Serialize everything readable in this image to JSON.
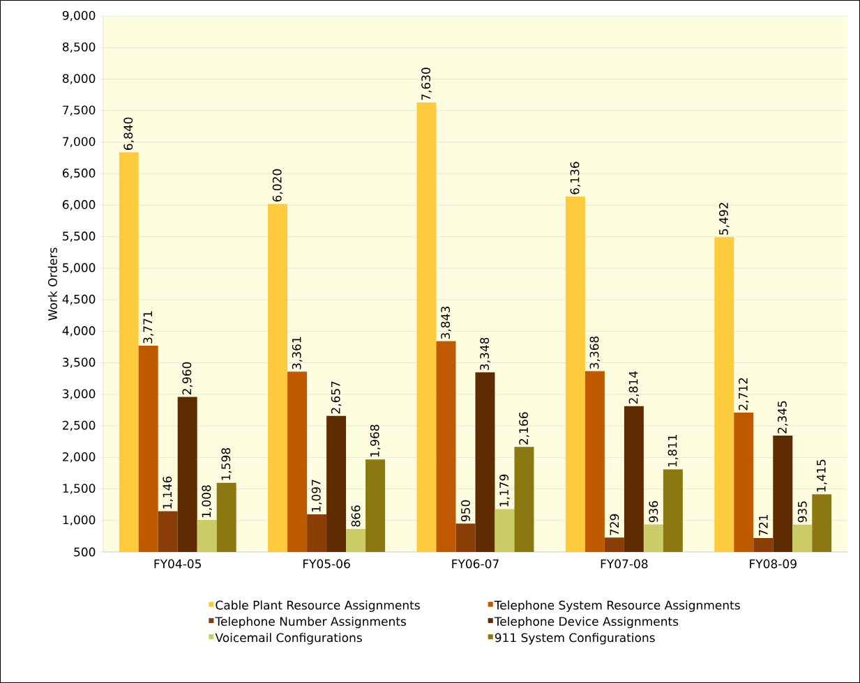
{
  "chart_data": {
    "type": "bar",
    "ylabel": "Work Orders",
    "categories": [
      "FY04-05",
      "FY05-06",
      "FY06-07",
      "FY07-08",
      "FY08-09"
    ],
    "series": [
      {
        "name": "Cable Plant Resource Assignments",
        "color": "#fdcb3c",
        "values": [
          6840,
          6020,
          7630,
          6136,
          5492
        ],
        "value_labels": [
          "6,840",
          "6,020",
          "7,630",
          "6,136",
          "5,492"
        ]
      },
      {
        "name": "Telephone System Resource Assignments",
        "color": "#c05a00",
        "values": [
          3771,
          3361,
          3843,
          3368,
          2712
        ],
        "value_labels": [
          "3,771",
          "3,361",
          "3,843",
          "3,368",
          "2,712"
        ]
      },
      {
        "name": "Telephone Number Assignments",
        "color": "#8a3d05",
        "values": [
          1146,
          1097,
          950,
          729,
          721
        ],
        "value_labels": [
          "1,146",
          "1,097",
          "950",
          "729",
          "721"
        ]
      },
      {
        "name": "Telephone Device Assignments",
        "color": "#5e2c00",
        "values": [
          2960,
          2657,
          3348,
          2814,
          2345
        ],
        "value_labels": [
          "2,960",
          "2,657",
          "3,348",
          "2,814",
          "2,345"
        ]
      },
      {
        "name": "Voicemail Configurations",
        "color": "#cccc66",
        "values": [
          1008,
          866,
          1179,
          936,
          935
        ],
        "value_labels": [
          "1,008",
          "866",
          "1,179",
          "936",
          "935"
        ]
      },
      {
        "name": "911 System Configurations",
        "color": "#8c7810",
        "values": [
          1598,
          1968,
          2166,
          1811,
          1415
        ],
        "value_labels": [
          "1,598",
          "1,968",
          "2,166",
          "1,811",
          "1,415"
        ]
      }
    ],
    "ylim": [
      500,
      9000
    ],
    "yticks": [
      {
        "value": 500,
        "label": "500"
      },
      {
        "value": 1000,
        "label": "1,000"
      },
      {
        "value": 1500,
        "label": "1,500"
      },
      {
        "value": 2000,
        "label": "2,000"
      },
      {
        "value": 2500,
        "label": "2,500"
      },
      {
        "value": 3000,
        "label": "3,000"
      },
      {
        "value": 3500,
        "label": "3,500"
      },
      {
        "value": 4000,
        "label": "4,000"
      },
      {
        "value": 4500,
        "label": "4,500"
      },
      {
        "value": 5000,
        "label": "5,000"
      },
      {
        "value": 5500,
        "label": "5,500"
      },
      {
        "value": 6000,
        "label": "6,000"
      },
      {
        "value": 6500,
        "label": "6,500"
      },
      {
        "value": 7000,
        "label": "7,000"
      },
      {
        "value": 7500,
        "label": "7,500"
      },
      {
        "value": 8000,
        "label": "8,000"
      },
      {
        "value": 8500,
        "label": "8,500"
      },
      {
        "value": 9000,
        "label": "9,000"
      }
    ],
    "grid": "y",
    "legend": "bottom"
  }
}
